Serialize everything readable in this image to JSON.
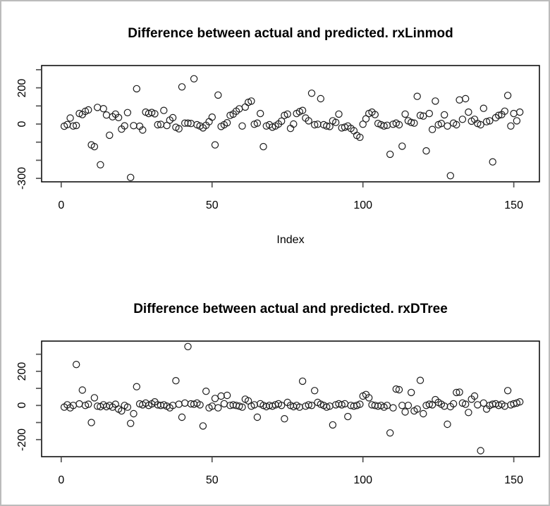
{
  "figure": {
    "background": "#ffffff",
    "border_color": "#bcbcbc",
    "marker_color": "#1c1c1c",
    "axis_color": "#000000",
    "tick_color": "#555555"
  },
  "chart_data": [
    {
      "type": "scatter",
      "title": "Difference between actual and predicted. rxLinmod",
      "xlabel": "Index",
      "ylabel": "",
      "marker": "open-circle",
      "legend": "none",
      "grid": false,
      "x_range": [
        1,
        152
      ],
      "xlim": [
        -6.5,
        158.5
      ],
      "ylim": [
        -319,
        323
      ],
      "x_ticks": [
        0,
        50,
        100,
        150
      ],
      "x_tick_labels": [
        "0",
        "50",
        "100",
        "150"
      ],
      "y_ticks": [
        -300,
        -200,
        -100,
        0,
        100,
        200,
        300
      ],
      "y_tick_labels": [
        "-300",
        "",
        "",
        "0",
        "",
        "200",
        ""
      ],
      "values": [
        -12,
        -3,
        33,
        -11,
        -8,
        58,
        52,
        70,
        78,
        -115,
        -125,
        92,
        -225,
        85,
        50,
        -62,
        40,
        55,
        36,
        -28,
        -10,
        63,
        -295,
        -9,
        195,
        -12,
        -33,
        66,
        58,
        64,
        57,
        -4,
        -2,
        75,
        -8,
        22,
        35,
        -18,
        -26,
        205,
        5,
        5,
        3,
        250,
        -4,
        -11,
        -21,
        -7,
        13,
        38,
        -115,
        160,
        -13,
        -4,
        7,
        48,
        55,
        71,
        84,
        -11,
        94,
        120,
        127,
        -1,
        5,
        58,
        -125,
        -11,
        -4,
        -17,
        -11,
        0,
        16,
        48,
        55,
        -24,
        0,
        58,
        68,
        75,
        33,
        18,
        170,
        -4,
        -1,
        140,
        -4,
        -11,
        -13,
        18,
        9,
        55,
        -21,
        -17,
        -11,
        -24,
        -37,
        -63,
        -73,
        -1,
        29,
        58,
        66,
        52,
        3,
        -4,
        -11,
        -7,
        -167,
        -1,
        5,
        -4,
        -122,
        55,
        18,
        9,
        5,
        153,
        48,
        44,
        -148,
        58,
        -30,
        127,
        -4,
        3,
        51,
        -11,
        -285,
        5,
        -4,
        133,
        26,
        140,
        66,
        16,
        26,
        3,
        -4,
        87,
        13,
        18,
        -209,
        35,
        48,
        52,
        71,
        158,
        -11,
        58,
        18,
        66
      ]
    },
    {
      "type": "scatter",
      "title": "Difference between actual and predicted. rxDTree",
      "xlabel": "",
      "ylabel": "",
      "marker": "open-circle",
      "legend": "none",
      "grid": false,
      "x_range": [
        1,
        152
      ],
      "xlim": [
        -6.5,
        158.5
      ],
      "ylim": [
        -300,
        377
      ],
      "x_ticks": [
        0,
        50,
        100,
        150
      ],
      "x_tick_labels": [
        "0",
        "50",
        "100",
        "150"
      ],
      "y_ticks": [
        -200,
        -100,
        0,
        100,
        200,
        300
      ],
      "y_tick_labels": [
        "-200",
        "",
        "0",
        "",
        "200",
        ""
      ],
      "values": [
        -10,
        4,
        -14,
        0,
        240,
        9,
        90,
        0,
        7,
        -100,
        45,
        -4,
        -7,
        4,
        -7,
        0,
        -10,
        7,
        -21,
        -32,
        0,
        -10,
        -105,
        -48,
        110,
        9,
        4,
        14,
        0,
        9,
        21,
        4,
        0,
        4,
        -4,
        -14,
        0,
        145,
        7,
        -69,
        14,
        345,
        9,
        7,
        14,
        4,
        -120,
        83,
        -14,
        -4,
        41,
        -14,
        55,
        10,
        59,
        0,
        4,
        0,
        -4,
        -10,
        37,
        27,
        -4,
        4,
        -69,
        10,
        0,
        -7,
        0,
        -4,
        4,
        10,
        0,
        -78,
        18,
        0,
        -7,
        0,
        -10,
        142,
        -4,
        4,
        0,
        87,
        18,
        7,
        0,
        -10,
        -4,
        -114,
        4,
        10,
        4,
        10,
        -65,
        0,
        -4,
        0,
        7,
        55,
        64,
        45,
        4,
        0,
        -4,
        0,
        -10,
        0,
        -161,
        -14,
        96,
        92,
        0,
        -38,
        0,
        76,
        -32,
        -21,
        147,
        -48,
        0,
        7,
        4,
        34,
        18,
        7,
        -4,
        -110,
        -7,
        10,
        76,
        78,
        14,
        7,
        -41,
        37,
        55,
        4,
        -265,
        14,
        -21,
        0,
        7,
        10,
        0,
        7,
        -4,
        87,
        4,
        10,
        14,
        21
      ]
    }
  ]
}
